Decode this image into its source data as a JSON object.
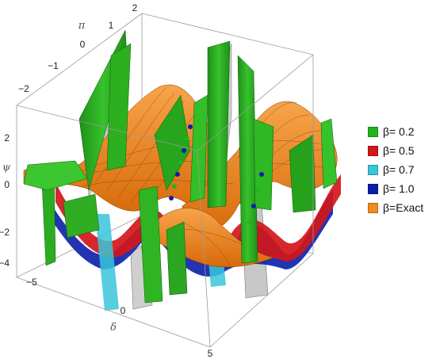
{
  "chart_data": {
    "type": "surface3d",
    "axes": {
      "x": {
        "label": "δ",
        "ticks": [
          "−5",
          "0",
          "5"
        ],
        "range": [
          -5,
          5
        ]
      },
      "y": {
        "label": "π",
        "ticks": [
          "−2",
          "−1",
          "0",
          "1",
          "2"
        ],
        "range": [
          -2,
          2
        ]
      },
      "z": {
        "label": "ψ",
        "ticks": [
          "2",
          "0",
          "−2",
          "−4"
        ],
        "range": [
          -4,
          3
        ]
      }
    },
    "series": [
      {
        "name": "β= 0.2",
        "color": "#22b41c"
      },
      {
        "name": "β= 0.5",
        "color": "#d4161b"
      },
      {
        "name": "β= 0.7",
        "color": "#38c6d9"
      },
      {
        "name": "β= 1.0",
        "color": "#0b1ea8"
      },
      {
        "name": "β=Exact",
        "color": "#f28a1e"
      }
    ],
    "legend_position": "right",
    "box": true
  }
}
